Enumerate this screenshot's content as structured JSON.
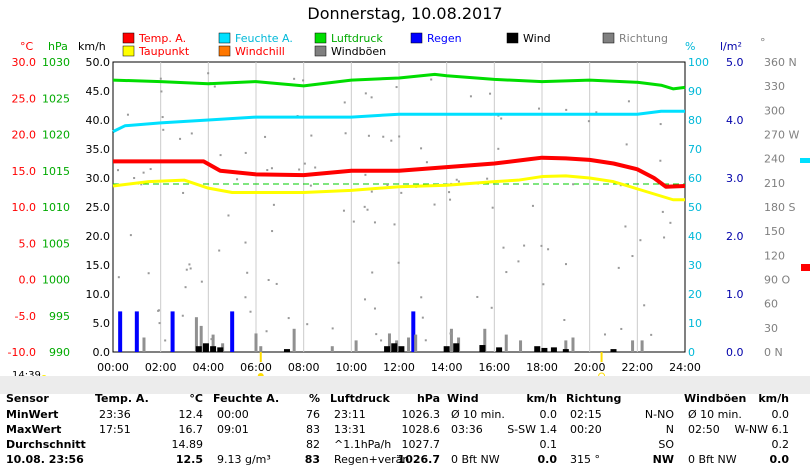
{
  "title": "Donnerstag, 10.08.2017",
  "time_marker": "14:39",
  "legend": [
    {
      "label": "Temp. A.",
      "color": "#ff0000",
      "text_color": "#ff0000"
    },
    {
      "label": "Feuchte A.",
      "color": "#00e0ff",
      "text_color": "#00b8d8"
    },
    {
      "label": "Luftdruck",
      "color": "#00dd00",
      "text_color": "#00aa00"
    },
    {
      "label": "Regen",
      "color": "#0000ff",
      "text_color": "#0000ff"
    },
    {
      "label": "Wind",
      "color": "#000000",
      "text_color": "#000000"
    },
    {
      "label": "Richtung",
      "color": "#808080",
      "text_color": "#808080"
    },
    {
      "label": "Taupunkt",
      "color": "#ffff00",
      "text_color": "#ff0000"
    },
    {
      "label": "Windchill",
      "color": "#ff7700",
      "text_color": "#ff0000"
    },
    {
      "label": "Windböen",
      "color": "#808080",
      "text_color": "#000000"
    }
  ],
  "axes": {
    "temp": {
      "unit": "°C",
      "ticks": [
        "30.0",
        "25.0",
        "20.0",
        "15.0",
        "10.0",
        "5.0",
        "0.0",
        "-5.0",
        "-10.0"
      ],
      "color": "#ff0000"
    },
    "press": {
      "unit": "hPa",
      "ticks": [
        "1030",
        "1025",
        "1020",
        "1015",
        "1010",
        "1005",
        "1000",
        "995",
        "990"
      ],
      "color": "#00aa00"
    },
    "wind": {
      "unit": "km/h",
      "ticks": [
        "50.0",
        "45.0",
        "40.0",
        "35.0",
        "30.0",
        "25.0",
        "20.0",
        "15.0",
        "10.0",
        "5.0",
        "0.0"
      ]
    },
    "hum": {
      "unit": "%",
      "ticks": [
        "100",
        "90",
        "80",
        "70",
        "60",
        "50",
        "40",
        "30",
        "20",
        "10",
        "0"
      ],
      "color": "#00b8d8"
    },
    "rain": {
      "unit": "l/m²",
      "ticks": [
        "5.0",
        "4.0",
        "3.0",
        "2.0",
        "1.0",
        "0.0"
      ],
      "color": "#0000aa"
    },
    "dir": {
      "unit": "°",
      "ticks": [
        "360 N",
        "330",
        "300",
        "270 W",
        "240",
        "210",
        "180 S",
        "150",
        "120",
        "90 O",
        "60",
        "30",
        "0 N"
      ]
    },
    "x_ticks": [
      "00:00",
      "02:00",
      "04:00",
      "06:00",
      "08:00",
      "10:00",
      "12:00",
      "14:00",
      "16:00",
      "18:00",
      "20:00",
      "22:00",
      "24:00"
    ]
  },
  "chart_data": {
    "type": "line",
    "title": "Donnerstag, 10.08.2017",
    "x_range": [
      "00:00",
      "24:00"
    ],
    "series": [
      {
        "name": "Temp. A.",
        "unit": "°C",
        "x": [
          0,
          1.5,
          2.5,
          3.8,
          4.5,
          6,
          8,
          10,
          12,
          14,
          16,
          17.5,
          18,
          19,
          20,
          21,
          22,
          22.7,
          23.2,
          24
        ],
        "values": [
          16.3,
          16.3,
          16.3,
          16.3,
          15.0,
          14.5,
          14.4,
          15.0,
          15.0,
          15.5,
          16.0,
          16.6,
          16.8,
          16.7,
          16.5,
          16.0,
          15.2,
          14.0,
          12.8,
          12.9
        ]
      },
      {
        "name": "Taupunkt",
        "x": [
          0,
          1.5,
          3,
          4,
          5,
          6,
          8,
          10,
          12,
          14,
          16,
          17,
          18,
          19,
          20,
          21,
          22,
          23,
          23.5,
          24
        ],
        "values": [
          12.9,
          13.5,
          13.7,
          12.6,
          12.0,
          12.0,
          12.0,
          12.3,
          12.8,
          13.0,
          13.5,
          13.7,
          14.2,
          14.3,
          14.0,
          13.5,
          12.5,
          11.5,
          11.0,
          11.0
        ]
      },
      {
        "name": "Feuchte A.",
        "unit": "%",
        "x": [
          0,
          0.5,
          2,
          4,
          6,
          8,
          10,
          12,
          14,
          16,
          18,
          20,
          22,
          23,
          24
        ],
        "values": [
          76,
          78,
          79,
          80,
          81,
          81,
          81,
          82,
          82,
          82,
          82,
          82,
          82,
          83,
          83
        ]
      },
      {
        "name": "Luftdruck",
        "unit": "hPa",
        "x": [
          0,
          2,
          4,
          6,
          8,
          10,
          12,
          13.5,
          14,
          16,
          18,
          20,
          22,
          23,
          23.5,
          24
        ],
        "values": [
          1027.5,
          1027.3,
          1027.0,
          1027.3,
          1026.7,
          1027.5,
          1027.8,
          1028.3,
          1028.1,
          1027.6,
          1027.3,
          1027.5,
          1027.2,
          1026.8,
          1026.3,
          1026.5
        ]
      },
      {
        "name": "Regen",
        "unit": "l/m²",
        "bars": [
          {
            "x": 0.3,
            "v": 0.7
          },
          {
            "x": 1.0,
            "v": 0.7
          },
          {
            "x": 2.5,
            "v": 0.7
          },
          {
            "x": 5.0,
            "v": 0.7
          },
          {
            "x": 12.6,
            "v": 0.7
          }
        ]
      },
      {
        "name": "Windböen",
        "unit": "km/h",
        "x": [
          1.3,
          3.5,
          3.7,
          4.2,
          4.6,
          6.0,
          6.2,
          7.6,
          9.2,
          10.2,
          11.6,
          11.9,
          12.4,
          12.7,
          14.2,
          14.5,
          15.6,
          16.5,
          17.1,
          19.0,
          19.3,
          21.8,
          22.2
        ],
        "values": [
          2.5,
          6.0,
          4.5,
          3.0,
          1.5,
          3.2,
          1.0,
          4.0,
          1.0,
          2.0,
          3.2,
          2.0,
          2.5,
          3.0,
          4.0,
          2.5,
          4.0,
          3.0,
          2.0,
          2.0,
          2.5,
          2.0,
          2.0
        ]
      },
      {
        "name": "Wind",
        "unit": "km/h",
        "x": [
          3.6,
          3.9,
          4.2,
          4.5,
          7.3,
          11.5,
          11.8,
          12.1,
          14.0,
          14.4,
          15.5,
          16.2,
          17.8,
          18.1,
          18.5,
          19.0,
          21.0
        ],
        "values": [
          1.0,
          1.5,
          1.0,
          0.8,
          0.5,
          1.0,
          1.5,
          1.0,
          1.0,
          1.5,
          1.2,
          0.8,
          1.0,
          0.7,
          0.8,
          0.5,
          0.5
        ]
      }
    ]
  },
  "table": {
    "headers": [
      {
        "label": "Sensor",
        "unit": ""
      },
      {
        "label": "Temp. A.",
        "unit": "°C"
      },
      {
        "label": "Feuchte A.",
        "unit": "%"
      },
      {
        "label": "Luftdruck",
        "unit": "hPa"
      },
      {
        "label": "Wind",
        "unit": "km/h"
      },
      {
        "label": "Richtung",
        "unit": ""
      },
      {
        "label": "Windböen",
        "unit": "km/h"
      }
    ],
    "rows": [
      {
        "label": "MinWert",
        "cells": [
          [
            "23:36",
            "12.4"
          ],
          [
            "00:00",
            "76"
          ],
          [
            "23:11",
            "1026.3"
          ],
          [
            "Ø 10 min.",
            "0.0"
          ],
          [
            "02:15",
            "N-NO"
          ],
          [
            "Ø 10 min.",
            "0.0"
          ]
        ]
      },
      {
        "label": "MaxWert",
        "cells": [
          [
            "17:51",
            "16.7"
          ],
          [
            "09:01",
            "83"
          ],
          [
            "13:31",
            "1028.6"
          ],
          [
            "03:36",
            "S-SW 1.4"
          ],
          [
            "00:20",
            "N"
          ],
          [
            "02:50",
            "W-NW 6.1"
          ]
        ]
      },
      {
        "label": "Durchschnitt",
        "cells": [
          [
            "",
            "14.89"
          ],
          [
            "",
            "82"
          ],
          [
            "^1.1hPa/h",
            "1027.7"
          ],
          [
            "",
            "0.1"
          ],
          [
            "",
            "SO"
          ],
          [
            "",
            "0.2"
          ]
        ]
      },
      {
        "label": "10.08. 23:56",
        "cells": [
          [
            "",
            "12.5"
          ],
          [
            "9.13 g/m³",
            "83"
          ],
          [
            "Regen+verän",
            "1026.7"
          ],
          [
            "0 Bft NW",
            "0.0"
          ],
          [
            "315 °",
            "NW"
          ],
          [
            "0 Bft NW",
            "0.0"
          ]
        ]
      }
    ]
  }
}
